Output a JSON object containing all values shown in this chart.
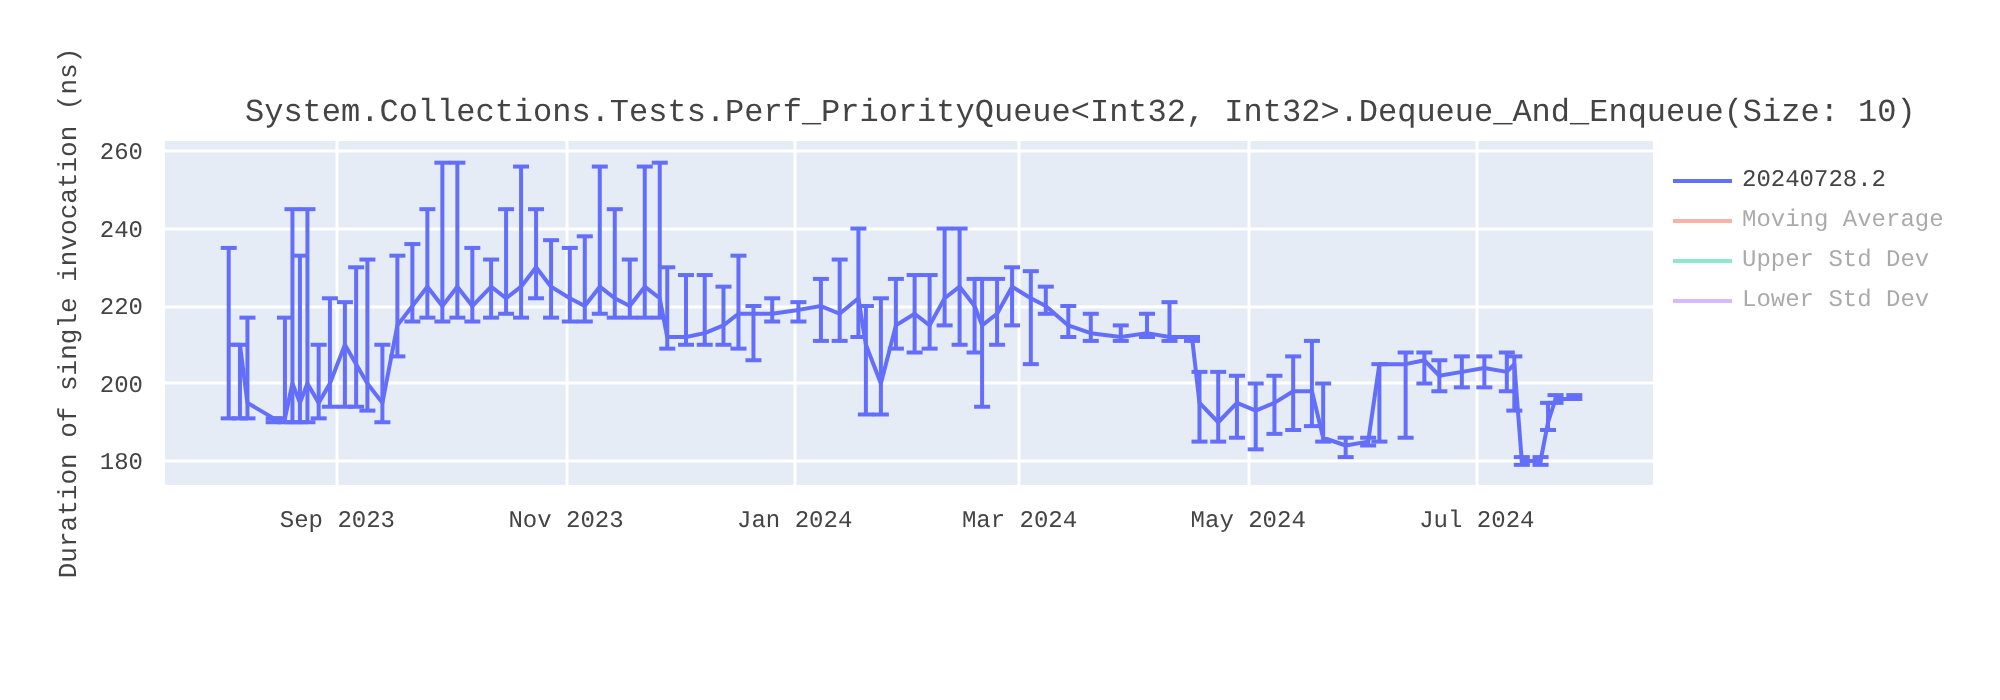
{
  "chart_data": {
    "type": "line",
    "title": "System.Collections.Tests.Perf_PriorityQueue<Int32, Int32>.Dequeue_And_Enqueue(Size: 10)",
    "ylabel": "Duration of single invocation (ns)",
    "x": [
      "2023-08-03",
      "2023-08-06",
      "2023-08-08",
      "2023-08-15",
      "2023-08-18",
      "2023-08-20",
      "2023-08-22",
      "2023-08-24",
      "2023-08-27",
      "2023-08-30",
      "2023-09-03",
      "2023-09-06",
      "2023-09-09",
      "2023-09-13",
      "2023-09-17",
      "2023-09-21",
      "2023-09-25",
      "2023-09-29",
      "2023-10-03",
      "2023-10-07",
      "2023-10-12",
      "2023-10-16",
      "2023-10-20",
      "2023-10-24",
      "2023-10-28",
      "2023-11-02",
      "2023-11-06",
      "2023-11-10",
      "2023-11-14",
      "2023-11-18",
      "2023-11-22",
      "2023-11-26",
      "2023-11-28",
      "2023-12-03",
      "2023-12-08",
      "2023-12-13",
      "2023-12-17",
      "2023-12-21",
      "2023-12-26",
      "2024-01-02",
      "2024-01-08",
      "2024-01-13",
      "2024-01-18",
      "2024-01-20",
      "2024-01-24",
      "2024-01-28",
      "2024-02-02",
      "2024-02-06",
      "2024-02-10",
      "2024-02-14",
      "2024-02-18",
      "2024-02-20",
      "2024-02-24",
      "2024-02-28",
      "2024-03-04",
      "2024-03-08",
      "2024-03-14",
      "2024-03-20",
      "2024-03-28",
      "2024-04-04",
      "2024-04-10",
      "2024-04-16",
      "2024-04-18",
      "2024-04-23",
      "2024-04-28",
      "2024-05-03",
      "2024-05-08",
      "2024-05-13",
      "2024-05-18",
      "2024-05-21",
      "2024-05-27",
      "2024-06-02",
      "2024-06-05",
      "2024-06-12",
      "2024-06-17",
      "2024-06-21",
      "2024-06-27",
      "2024-07-03",
      "2024-07-09",
      "2024-07-11",
      "2024-07-13",
      "2024-07-18",
      "2024-07-20",
      "2024-07-22",
      "2024-07-27"
    ],
    "series": [
      {
        "name": "20240728.2",
        "color": "#636efa",
        "values": [
          210,
          210,
          195,
          191,
          191,
          200,
          195,
          200,
          195,
          200,
          210,
          205,
          200,
          195,
          215,
          220,
          225,
          220,
          225,
          220,
          225,
          222,
          225,
          230,
          225,
          222,
          220,
          225,
          222,
          220,
          225,
          222,
          212,
          212,
          213,
          215,
          218,
          218,
          218,
          219,
          220,
          218,
          222,
          210,
          200,
          215,
          218,
          215,
          222,
          225,
          220,
          215,
          218,
          225,
          222,
          220,
          215,
          213,
          212,
          213,
          212,
          212,
          195,
          190,
          195,
          193,
          195,
          198,
          198,
          186,
          184,
          185,
          205,
          205,
          206,
          202,
          203,
          204,
          203,
          205,
          180,
          180,
          190,
          196,
          196
        ],
        "errors": [
          [
            191,
            235
          ],
          [
            191,
            210
          ],
          [
            191,
            217
          ],
          [
            190,
            191
          ],
          [
            190,
            217
          ],
          [
            190,
            245
          ],
          [
            190,
            233
          ],
          [
            190,
            245
          ],
          [
            191,
            210
          ],
          [
            194,
            222
          ],
          [
            194,
            221
          ],
          [
            194,
            230
          ],
          [
            193,
            232
          ],
          [
            190,
            210
          ],
          [
            207,
            233
          ],
          [
            216,
            236
          ],
          [
            217,
            245
          ],
          [
            216,
            257
          ],
          [
            217,
            257
          ],
          [
            216,
            235
          ],
          [
            217,
            232
          ],
          [
            218,
            245
          ],
          [
            217,
            256
          ],
          [
            222,
            245
          ],
          [
            217,
            237
          ],
          [
            216,
            235
          ],
          [
            216,
            238
          ],
          [
            218,
            256
          ],
          [
            217,
            245
          ],
          [
            217,
            232
          ],
          [
            217,
            256
          ],
          [
            217,
            257
          ],
          [
            209,
            230
          ],
          [
            210,
            228
          ],
          [
            210,
            228
          ],
          [
            210,
            225
          ],
          [
            209,
            233
          ],
          [
            206,
            220
          ],
          [
            216,
            222
          ],
          [
            216,
            221
          ],
          [
            211,
            227
          ],
          [
            211,
            232
          ],
          [
            212,
            240
          ],
          [
            192,
            220
          ],
          [
            192,
            222
          ],
          [
            209,
            227
          ],
          [
            208,
            228
          ],
          [
            209,
            228
          ],
          [
            215,
            240
          ],
          [
            210,
            240
          ],
          [
            208,
            227
          ],
          [
            194,
            227
          ],
          [
            210,
            227
          ],
          [
            215,
            230
          ],
          [
            205,
            229
          ],
          [
            218,
            225
          ],
          [
            212,
            220
          ],
          [
            211,
            218
          ],
          [
            211,
            215
          ],
          [
            212,
            218
          ],
          [
            211,
            221
          ],
          [
            211,
            212
          ],
          [
            185,
            203
          ],
          [
            185,
            203
          ],
          [
            186,
            202
          ],
          [
            183,
            200
          ],
          [
            187,
            202
          ],
          [
            188,
            207
          ],
          [
            189,
            211
          ],
          [
            185,
            200
          ],
          [
            181,
            186
          ],
          [
            184,
            186
          ],
          [
            185,
            205
          ],
          [
            186,
            208
          ],
          [
            200,
            208
          ],
          [
            198,
            206
          ],
          [
            199,
            207
          ],
          [
            199,
            207
          ],
          [
            198,
            208
          ],
          [
            193,
            207
          ],
          [
            179,
            181
          ],
          [
            179,
            181
          ],
          [
            188,
            195
          ],
          [
            195,
            197
          ],
          [
            196,
            197
          ]
        ]
      },
      {
        "name": "Moving Average",
        "color": "#ef553b",
        "values": [
          null,
          null,
          null,
          null,
          null,
          null,
          null,
          null,
          null,
          null,
          null,
          null,
          null,
          null,
          null,
          null,
          null,
          null,
          null,
          null,
          null,
          null,
          null,
          null,
          null,
          null,
          null,
          null,
          null,
          null,
          null,
          null,
          null,
          null,
          null,
          null,
          null,
          null,
          null,
          null,
          null,
          null,
          null,
          null,
          null,
          null,
          null,
          null,
          null,
          null,
          null,
          null,
          null,
          null,
          null,
          null,
          null,
          null,
          null,
          null,
          null,
          null,
          null,
          null,
          null,
          null,
          null,
          null,
          null,
          null,
          null,
          null,
          null,
          null,
          null,
          null,
          null,
          null,
          null,
          null,
          null,
          null,
          null,
          null,
          null
        ]
      },
      {
        "name": "Upper Std Dev",
        "color": "#00cc96",
        "values": [
          null,
          null,
          null,
          null,
          null,
          null,
          null,
          null,
          null,
          null,
          null,
          null,
          null,
          null,
          null,
          null,
          null,
          null,
          null,
          null,
          null,
          null,
          null,
          null,
          null,
          null,
          null,
          null,
          null,
          null,
          null,
          null,
          null,
          null,
          null,
          null,
          null,
          null,
          null,
          null,
          null,
          null,
          null,
          null,
          null,
          null,
          null,
          null,
          null,
          null,
          null,
          null,
          null,
          null,
          null,
          null,
          null,
          null,
          null,
          null,
          null,
          null,
          null,
          null,
          null,
          null,
          null,
          null,
          null,
          null,
          null,
          null,
          null,
          null,
          null,
          null,
          null,
          null,
          null,
          null,
          null,
          null,
          null,
          null,
          null
        ]
      },
      {
        "name": "Lower Std Dev",
        "color": "#ab63fa",
        "values": [
          null,
          null,
          null,
          null,
          null,
          null,
          null,
          null,
          null,
          null,
          null,
          null,
          null,
          null,
          null,
          null,
          null,
          null,
          null,
          null,
          null,
          null,
          null,
          null,
          null,
          null,
          null,
          null,
          null,
          null,
          null,
          null,
          null,
          null,
          null,
          null,
          null,
          null,
          null,
          null,
          null,
          null,
          null,
          null,
          null,
          null,
          null,
          null,
          null,
          null,
          null,
          null,
          null,
          null,
          null,
          null,
          null,
          null,
          null,
          null,
          null,
          null,
          null,
          null,
          null,
          null,
          null,
          null,
          null,
          null,
          null,
          null,
          null,
          null,
          null,
          null,
          null,
          null,
          null,
          null,
          null,
          null,
          null,
          null,
          null
        ]
      }
    ],
    "xlim": [
      "2023-07-17",
      "2024-08-17"
    ],
    "xticks": [
      {
        "value": "2023-09-01",
        "label": "Sep 2023"
      },
      {
        "value": "2023-11-01",
        "label": "Nov 2023"
      },
      {
        "value": "2024-01-01",
        "label": "Jan 2024"
      },
      {
        "value": "2024-03-01",
        "label": "Mar 2024"
      },
      {
        "value": "2024-05-01",
        "label": "May 2024"
      },
      {
        "value": "2024-07-01",
        "label": "Jul 2024"
      }
    ],
    "ylim": [
      173.8,
      262.6
    ],
    "yticks": [
      180,
      200,
      220,
      240,
      260
    ],
    "grid": true,
    "legend": "right",
    "line_style": "solid",
    "marker": "none"
  }
}
